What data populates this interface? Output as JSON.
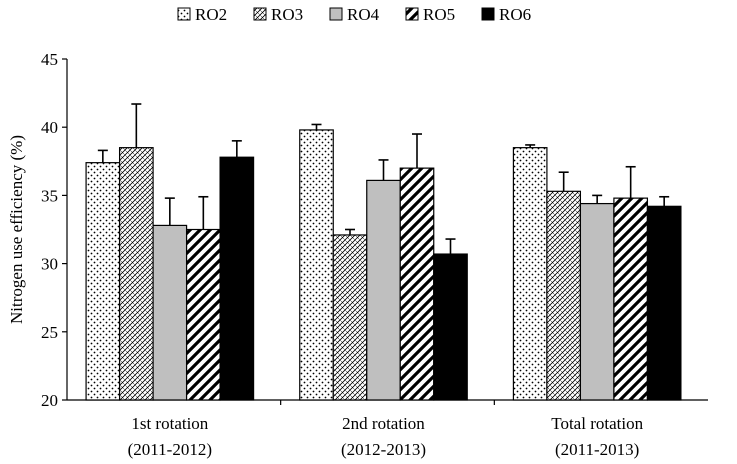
{
  "chart_data": {
    "type": "bar",
    "title": "",
    "xlabel": "",
    "ylabel": "Nitrogen use efficiency (%)",
    "ylim": [
      20,
      45
    ],
    "yticks": [
      20,
      25,
      30,
      35,
      40,
      45
    ],
    "grid": false,
    "legend_position": "top",
    "categories": [
      {
        "line1": "1st rotation",
        "line2": "(2011-2012)"
      },
      {
        "line1": "2nd rotation",
        "line2": "(2012-2013)"
      },
      {
        "line1": "Total rotation",
        "line2": "(2011-2013)"
      }
    ],
    "series": [
      {
        "name": "RO2",
        "pattern": "dots",
        "values": [
          37.4,
          39.8,
          38.5
        ],
        "errors": [
          0.9,
          0.4,
          0.2
        ]
      },
      {
        "name": "RO3",
        "pattern": "crosshatch",
        "values": [
          38.5,
          32.1,
          35.3
        ],
        "errors": [
          3.2,
          0.4,
          1.4
        ]
      },
      {
        "name": "RO4",
        "pattern": "gray",
        "values": [
          32.8,
          36.1,
          34.4
        ],
        "errors": [
          2.0,
          1.5,
          0.6
        ]
      },
      {
        "name": "RO5",
        "pattern": "diagonal",
        "values": [
          32.5,
          37.0,
          34.8
        ],
        "errors": [
          2.4,
          2.5,
          2.3
        ]
      },
      {
        "name": "RO6",
        "pattern": "black",
        "values": [
          37.8,
          30.7,
          34.2
        ],
        "errors": [
          1.2,
          1.1,
          0.7
        ]
      }
    ]
  }
}
